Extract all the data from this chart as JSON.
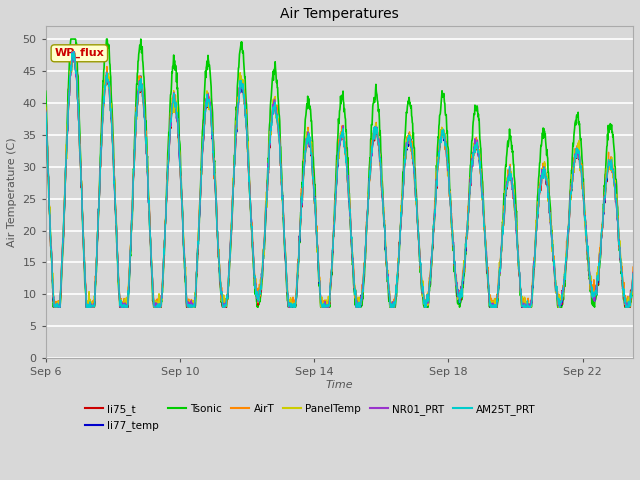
{
  "title": "Air Temperatures",
  "xlabel": "Time",
  "ylabel": "Air Temperature (C)",
  "ylim": [
    0,
    52
  ],
  "yticks": [
    0,
    5,
    10,
    15,
    20,
    25,
    30,
    35,
    40,
    45,
    50
  ],
  "xtick_labels": [
    "Sep 6",
    "Sep 10",
    "Sep 14",
    "Sep 18",
    "Sep 22"
  ],
  "xtick_pos": [
    0,
    4,
    8,
    12,
    16
  ],
  "xlim": [
    0,
    17.5
  ],
  "bg_color": "#d8d8d8",
  "plot_bg_color": "#d8d8d8",
  "annotation_text": "WP_flux",
  "annotation_color": "#cc0000",
  "annotation_bg": "#ffffcc",
  "annotation_border": "#999900",
  "series": [
    {
      "name": "li75_t",
      "color": "#cc0000",
      "lw": 1.0,
      "zorder": 4
    },
    {
      "name": "li77_temp",
      "color": "#0000cc",
      "lw": 1.0,
      "zorder": 4
    },
    {
      "name": "Tsonic",
      "color": "#00cc00",
      "lw": 1.2,
      "zorder": 3
    },
    {
      "name": "AirT",
      "color": "#ff8800",
      "lw": 1.0,
      "zorder": 4
    },
    {
      "name": "PanelTemp",
      "color": "#cccc00",
      "lw": 1.0,
      "zorder": 4
    },
    {
      "name": "NR01_PRT",
      "color": "#9933cc",
      "lw": 1.0,
      "zorder": 4
    },
    {
      "name": "AM25T_PRT",
      "color": "#00cccc",
      "lw": 1.0,
      "zorder": 4
    }
  ],
  "legend_ncol": 6,
  "legend_row2": [
    "AM25T_PRT"
  ],
  "legend_row2_color": [
    "#00cccc"
  ],
  "figsize": [
    6.4,
    4.8
  ],
  "dpi": 100
}
